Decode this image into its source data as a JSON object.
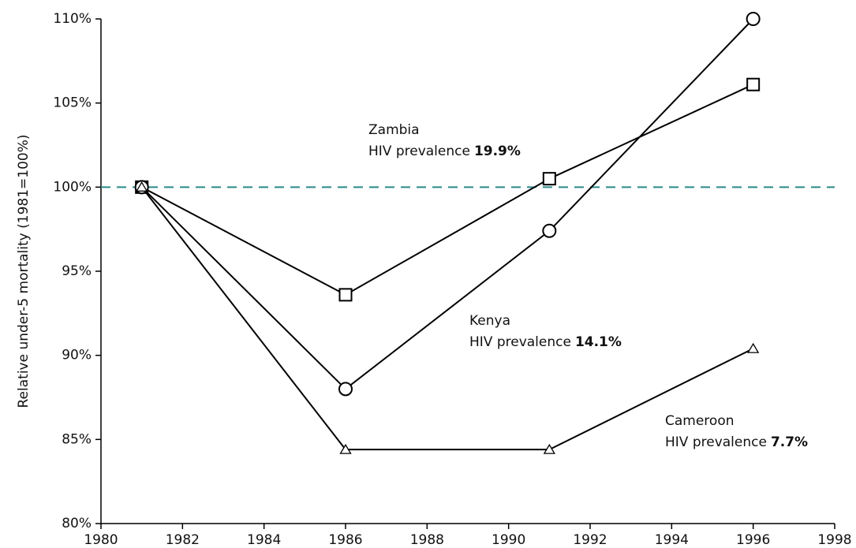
{
  "chart_data": {
    "type": "line",
    "y_label": "Relative under-5 mortality (1981=100%)",
    "x": [
      1981,
      1986,
      1991,
      1996
    ],
    "xlim": [
      1980,
      1998
    ],
    "xticks": [
      1980,
      1982,
      1984,
      1986,
      1988,
      1990,
      1992,
      1994,
      1996,
      1998
    ],
    "ylim": [
      80,
      110
    ],
    "yticks": [
      {
        "value": 80,
        "label": "80%"
      },
      {
        "value": 85,
        "label": "85%"
      },
      {
        "value": 90,
        "label": "90%"
      },
      {
        "value": 95,
        "label": "95%"
      },
      {
        "value": 100,
        "label": "100%"
      },
      {
        "value": 105,
        "label": "105%"
      },
      {
        "value": 110,
        "label": "110%"
      }
    ],
    "reference_line": {
      "value": 100,
      "color": "#2a8a8a"
    },
    "series": [
      {
        "name": "Zambia",
        "marker": "square",
        "color": "#000000",
        "note": "HIV prevalence",
        "prevalence": "19.9%",
        "values": [
          100,
          93.6,
          100.5,
          106.1
        ]
      },
      {
        "name": "Kenya",
        "marker": "circle",
        "color": "#000000",
        "note": "HIV prevalence",
        "prevalence": "14.1%",
        "values": [
          100,
          88.0,
          97.4,
          110
        ]
      },
      {
        "name": "Cameroon",
        "marker": "triangle",
        "color": "#000000",
        "note": "HIV prevalence",
        "prevalence": "7.7%",
        "values": [
          100,
          84.4,
          84.4,
          90.4
        ]
      }
    ]
  }
}
